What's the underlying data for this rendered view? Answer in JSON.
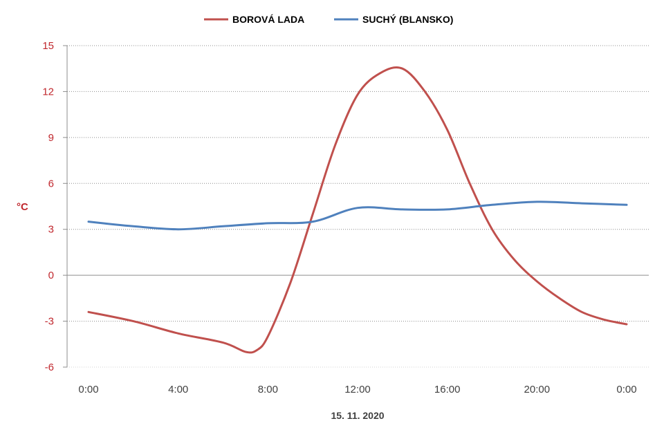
{
  "chart_data": {
    "type": "line",
    "title": "",
    "xlabel": "15. 11. 2020",
    "ylabel": "°C",
    "ylim": [
      -6,
      15
    ],
    "yticks": [
      15,
      12,
      9,
      6,
      3,
      0,
      -3,
      -6
    ],
    "x_tick_labels": [
      "0:00",
      "4:00",
      "8:00",
      "12:00",
      "16:00",
      "20:00",
      "0:00"
    ],
    "x_range_hours": [
      0,
      24
    ],
    "grid": "horizontal-dotted",
    "legend_position": "top-center",
    "series": [
      {
        "name": "BOROVÁ LADA",
        "color": "#c0504d",
        "x": [
          0,
          2,
          4,
          6,
          7,
          7.5,
          8,
          9,
          10,
          11,
          12,
          13,
          14,
          15,
          16,
          17,
          18,
          19,
          20,
          21,
          22,
          23,
          24
        ],
        "y": [
          -2.4,
          -3.0,
          -3.8,
          -4.4,
          -5.0,
          -4.9,
          -4.0,
          -0.5,
          4.0,
          8.5,
          11.8,
          13.2,
          13.5,
          12.0,
          9.5,
          6.0,
          3.0,
          1.0,
          -0.4,
          -1.5,
          -2.4,
          -2.9,
          -3.2
        ]
      },
      {
        "name": "SUCHÝ (BLANSKO)",
        "color": "#4f81bd",
        "x": [
          0,
          2,
          4,
          6,
          8,
          10,
          12,
          14,
          16,
          18,
          20,
          22,
          24
        ],
        "y": [
          3.5,
          3.2,
          3.0,
          3.2,
          3.4,
          3.5,
          4.4,
          4.3,
          4.3,
          4.6,
          4.8,
          4.7,
          4.6
        ]
      }
    ]
  }
}
